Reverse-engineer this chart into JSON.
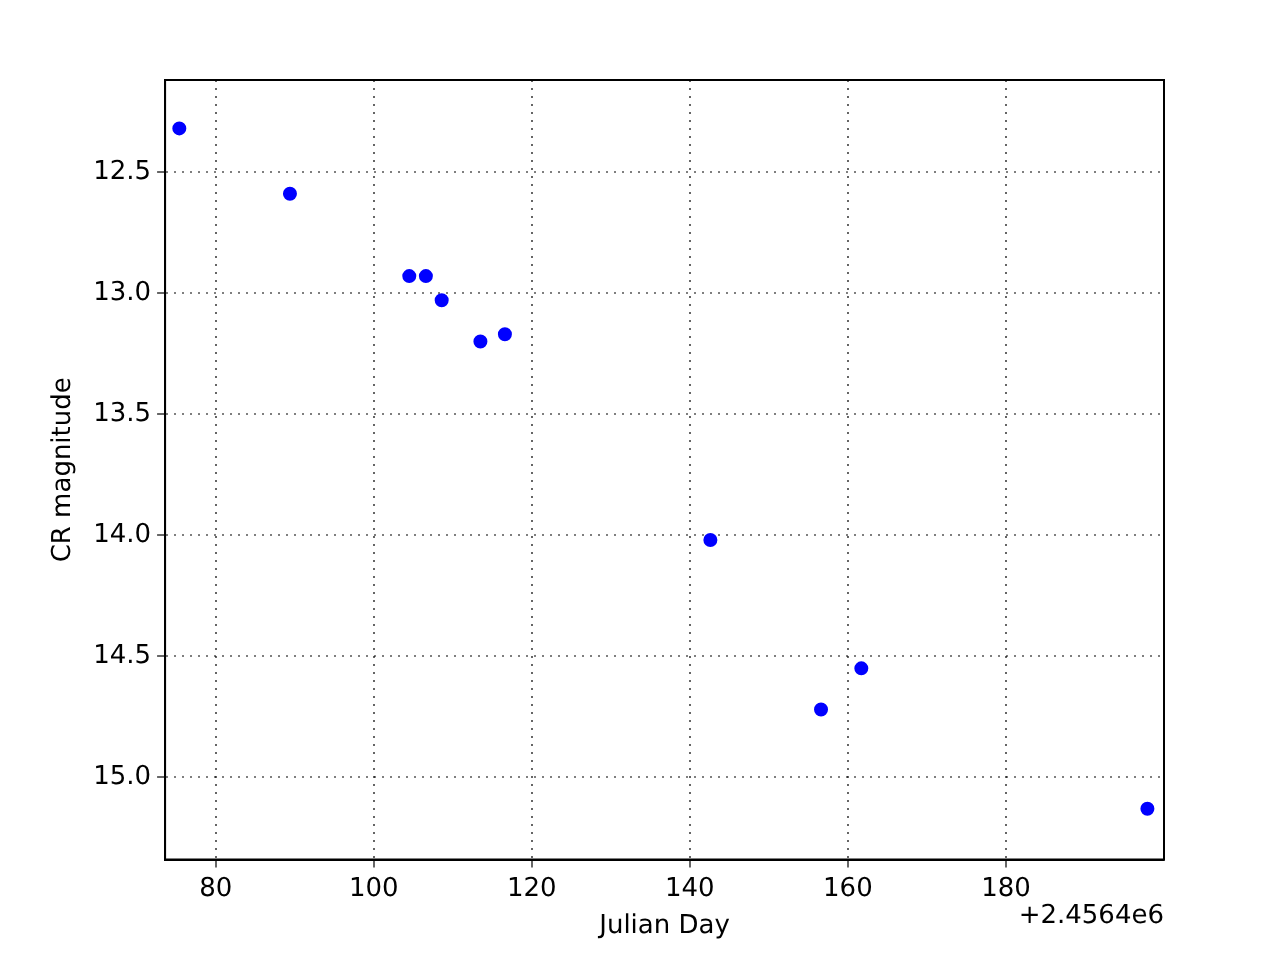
{
  "chart_data": {
    "type": "scatter",
    "xlabel": "Julian Day",
    "ylabel": "CR magnitude",
    "annotations": [
      "+2.4564e6"
    ],
    "x": [
      75.4,
      89.4,
      104.5,
      106.6,
      108.6,
      113.5,
      116.6,
      142.6,
      156.6,
      161.7,
      197.9
    ],
    "series": [
      {
        "color": "#0000ff",
        "values": [
          12.32,
          12.59,
          12.93,
          12.93,
          13.03,
          13.2,
          13.17,
          14.02,
          14.72,
          14.55,
          15.13
        ]
      }
    ],
    "xlim": [
      73.6,
      200
    ],
    "xticks": [
      80,
      100,
      120,
      140,
      160,
      180
    ],
    "ylim": [
      15.34,
      12.12
    ],
    "yticks": [
      12.5,
      {
        "value": 13,
        "label": "13.0"
      },
      13.5,
      {
        "value": 14,
        "label": "14.0"
      },
      14.5,
      {
        "value": 15,
        "label": "15.0"
      }
    ],
    "grid": true,
    "marker": "circle",
    "legend": false
  }
}
